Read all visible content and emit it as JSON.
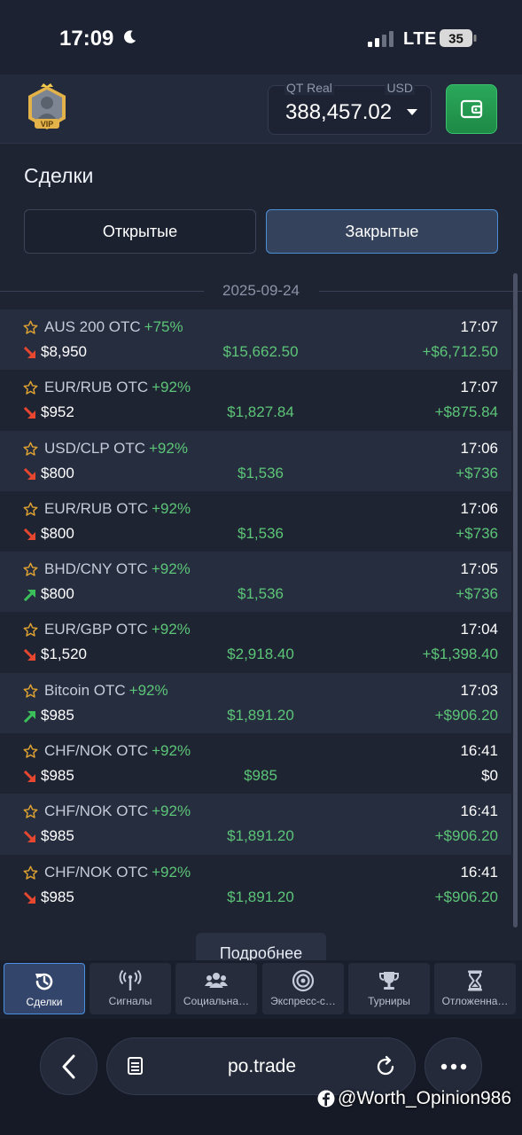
{
  "status_bar": {
    "time": "17:09",
    "network": "LTE",
    "battery": "35"
  },
  "header": {
    "avatar_badge": "VIP",
    "account_type": "QT Real",
    "currency": "USD",
    "balance": "388,457.02"
  },
  "page": {
    "title": "Сделки",
    "tabs": [
      {
        "label": "Открытые"
      },
      {
        "label": "Закрытые"
      }
    ],
    "date": "2025-09-24",
    "more_label": "Подробнее"
  },
  "trades": [
    {
      "asset": "AUS 200 OTC",
      "payout": "+75%",
      "time": "17:07",
      "direction": "down",
      "amount": "$8,950",
      "result": "$15,662.50",
      "profit": "+$6,712.50"
    },
    {
      "asset": "EUR/RUB OTC",
      "payout": "+92%",
      "time": "17:07",
      "direction": "down",
      "amount": "$952",
      "result": "$1,827.84",
      "profit": "+$875.84"
    },
    {
      "asset": "USD/CLP OTC",
      "payout": "+92%",
      "time": "17:06",
      "direction": "down",
      "amount": "$800",
      "result": "$1,536",
      "profit": "+$736"
    },
    {
      "asset": "EUR/RUB OTC",
      "payout": "+92%",
      "time": "17:06",
      "direction": "down",
      "amount": "$800",
      "result": "$1,536",
      "profit": "+$736"
    },
    {
      "asset": "BHD/CNY OTC",
      "payout": "+92%",
      "time": "17:05",
      "direction": "up",
      "amount": "$800",
      "result": "$1,536",
      "profit": "+$736"
    },
    {
      "asset": "EUR/GBP OTC",
      "payout": "+92%",
      "time": "17:04",
      "direction": "down",
      "amount": "$1,520",
      "result": "$2,918.40",
      "profit": "+$1,398.40"
    },
    {
      "asset": "Bitcoin OTC",
      "payout": "+92%",
      "time": "17:03",
      "direction": "up",
      "amount": "$985",
      "result": "$1,891.20",
      "profit": "+$906.20"
    },
    {
      "asset": "CHF/NOK OTC",
      "payout": "+92%",
      "time": "16:41",
      "direction": "down",
      "amount": "$985",
      "result": "$985",
      "profit": "$0"
    },
    {
      "asset": "CHF/NOK OTC",
      "payout": "+92%",
      "time": "16:41",
      "direction": "down",
      "amount": "$985",
      "result": "$1,891.20",
      "profit": "+$906.20"
    },
    {
      "asset": "CHF/NOK OTC",
      "payout": "+92%",
      "time": "16:41",
      "direction": "down",
      "amount": "$985",
      "result": "$1,891.20",
      "profit": "+$906.20"
    }
  ],
  "bottom_nav": [
    {
      "label": "Сделки",
      "icon": "history-icon"
    },
    {
      "label": "Сигналы",
      "icon": "signal-antenna-icon"
    },
    {
      "label": "Социальна…",
      "icon": "users-icon"
    },
    {
      "label": "Экспресс-с…",
      "icon": "target-icon"
    },
    {
      "label": "Турниры",
      "icon": "trophy-icon"
    },
    {
      "label": "Отложенна…",
      "icon": "hourglass-icon"
    }
  ],
  "browser": {
    "url": "po.trade"
  },
  "watermark": "@Worth_Opinion986",
  "colors": {
    "profit_green": "#5cc577",
    "down_red": "#e8472f",
    "up_green": "#3bbf5a",
    "star": "#e0a331",
    "accent_blue": "#4a90d9"
  }
}
